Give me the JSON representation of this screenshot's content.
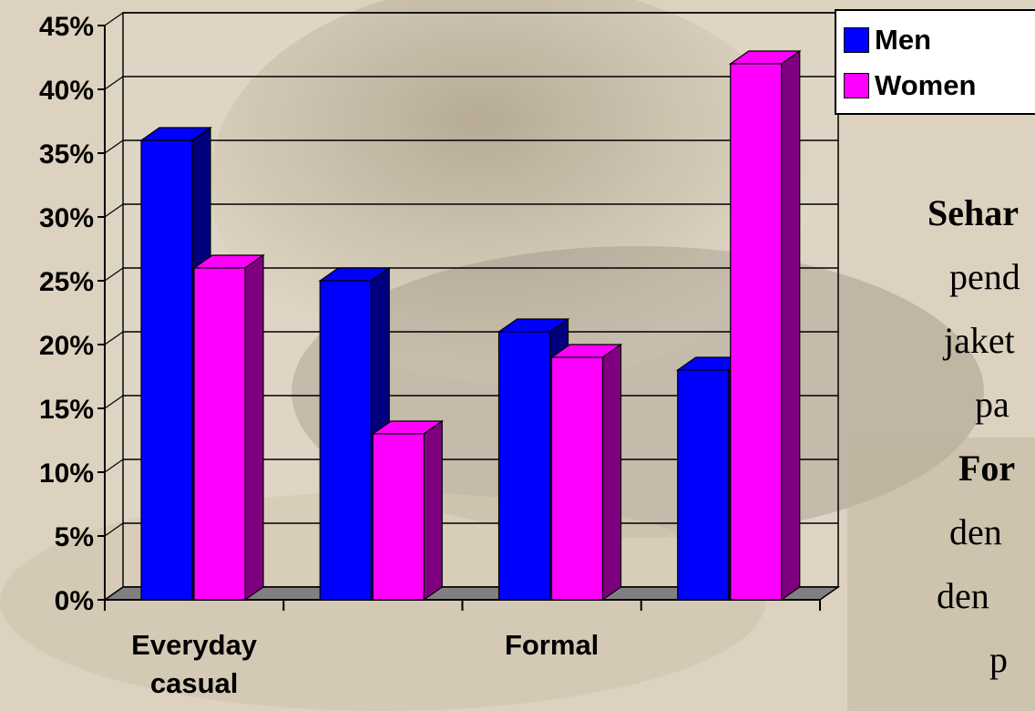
{
  "colors": {
    "men": "#0000ff",
    "men_side": "#00007f",
    "women": "#ff00ff",
    "women_side": "#7f007f",
    "gridline": "#000000",
    "floor": "#808080"
  },
  "legend": {
    "items": [
      {
        "label": "Men",
        "color": "#0000ff"
      },
      {
        "label": "Women",
        "color": "#ff00ff"
      }
    ]
  },
  "side_text": {
    "lines": [
      {
        "text": "Sehar",
        "bold": true
      },
      {
        "text": "pend",
        "bold": false
      },
      {
        "text": "jaket",
        "bold": false
      },
      {
        "text": "pa",
        "bold": false
      },
      {
        "text": "For",
        "bold": true
      },
      {
        "text": "den",
        "bold": false
      },
      {
        "text": "den",
        "bold": false
      },
      {
        "text": "p",
        "bold": false
      }
    ]
  },
  "chart_data": {
    "type": "bar",
    "categories": [
      "Everyday casual",
      "",
      "Formal",
      ""
    ],
    "series": [
      {
        "name": "Men",
        "values": [
          36,
          25,
          21,
          18
        ]
      },
      {
        "name": "Women",
        "values": [
          26,
          13,
          19,
          42
        ]
      }
    ],
    "y_tick_labels": [
      "0%",
      "5%",
      "10%",
      "15%",
      "20%",
      "25%",
      "30%",
      "35%",
      "40%",
      "45%"
    ],
    "ylim": [
      0,
      45
    ],
    "y_unit": "%",
    "grid": true,
    "legend_position": "top-right",
    "title": "",
    "xlabel": "",
    "ylabel": ""
  }
}
